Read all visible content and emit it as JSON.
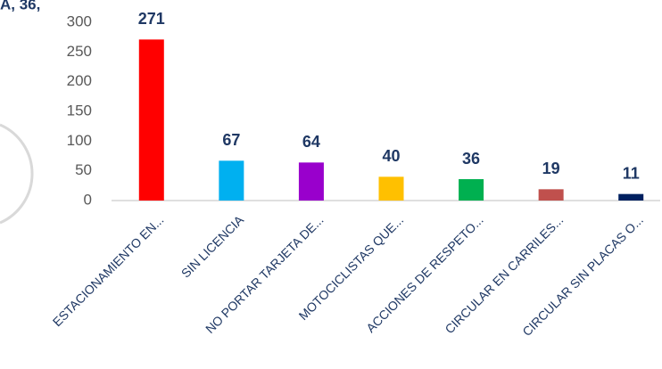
{
  "chart_data": {
    "type": "bar",
    "annotation": "A, 36,",
    "categories": [
      "ESTACIONAMIENTO EN...",
      "SIN LICENCIA",
      "NO PORTAR TARJETA DE...",
      "MOTOCICLISTAS QUE...",
      "ACCIONES DE RESPETO...",
      "CIRCULAR EN CARRILES...",
      "CIRCULAR SIN PLACAS O..."
    ],
    "values": [
      271,
      67,
      64,
      40,
      36,
      19,
      11
    ],
    "colors": [
      "#ff0000",
      "#00b0f0",
      "#9900cc",
      "#ffc000",
      "#00b050",
      "#c0504d",
      "#002060"
    ],
    "ylim": [
      0,
      300
    ],
    "yticks": [
      0,
      50,
      100,
      150,
      200,
      250,
      300
    ],
    "grid": false
  }
}
